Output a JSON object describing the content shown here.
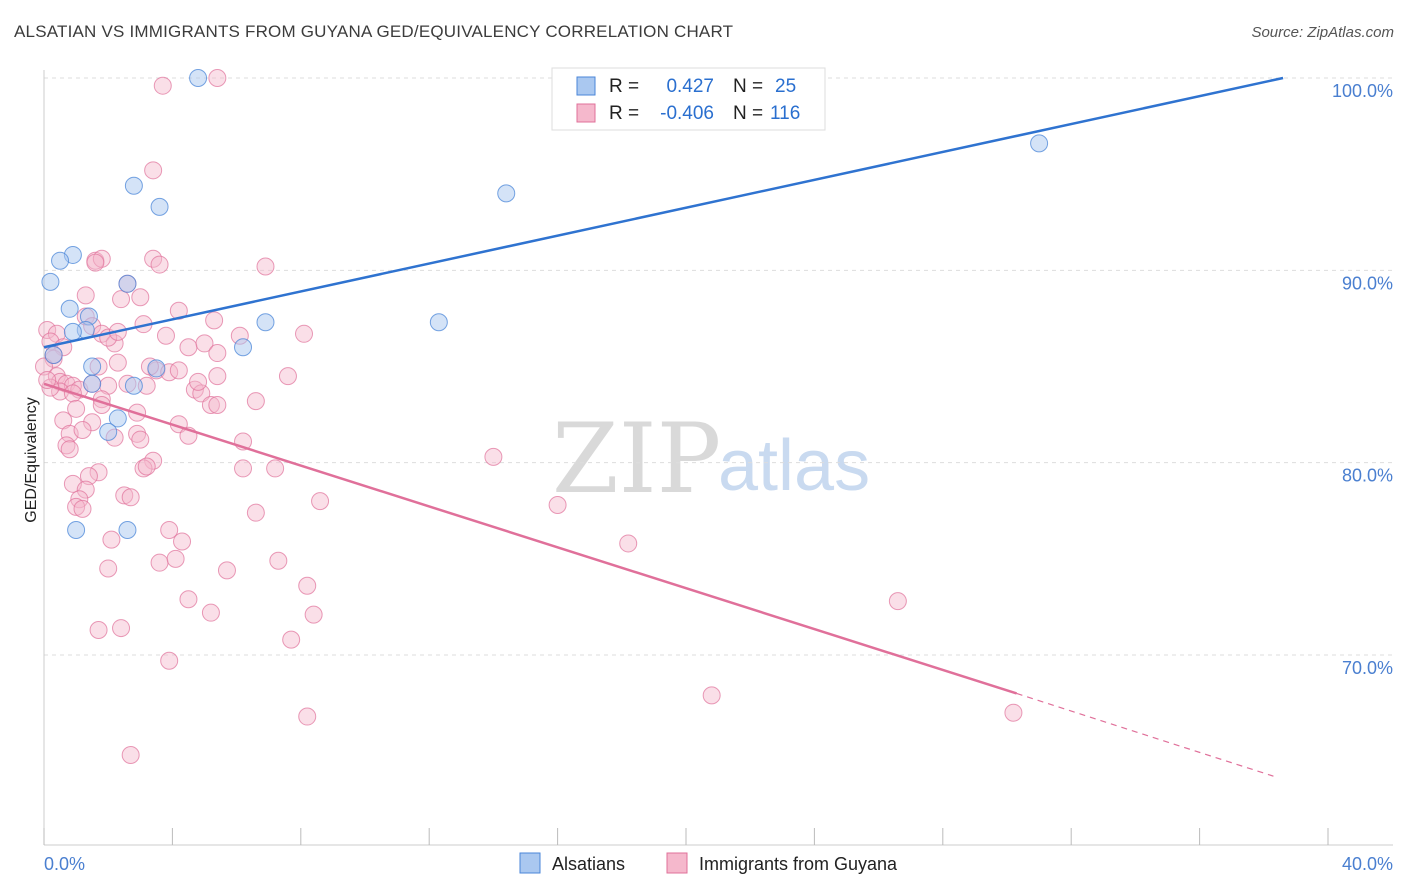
{
  "title": "ALSATIAN VS IMMIGRANTS FROM GUYANA GED/EQUIVALENCY CORRELATION CHART",
  "source": "Source: ZipAtlas.com",
  "watermark": {
    "zip": "ZIP",
    "atlas": "atlas"
  },
  "colors": {
    "blue": "#4a86d8",
    "blue_fill": "#aac8f0",
    "pink": "#e0709a",
    "pink_fill": "#f5b8cc",
    "axis_label": "#4a7fd0",
    "grid": "#dddddd"
  },
  "legend": {
    "rows": [
      {
        "r_label": "R =",
        "r_value": "0.427",
        "n_label": "N =",
        "n_value": "25"
      },
      {
        "r_label": "R =",
        "r_value": "-0.406",
        "n_label": "N =",
        "n_value": "116"
      }
    ]
  },
  "bottom_legend": [
    "Alsatians",
    "Immigrants from Guyana"
  ],
  "chart_data": {
    "type": "scatter",
    "ylabel": "GED/Equivalency",
    "xlabel": "",
    "x_tick_labels": [
      "0.0%",
      "40.0%"
    ],
    "y_tick_labels": [
      "100.0%",
      "90.0%",
      "80.0%",
      "70.0%"
    ],
    "y_ticks": [
      100,
      90,
      80,
      70
    ],
    "xlim": [
      0,
      40
    ],
    "ylim": [
      61,
      101
    ],
    "grid": true,
    "legend_position": "top-center",
    "series": [
      {
        "name": "Alsatians",
        "color": "#4a86d8",
        "trend": {
          "x0": 0,
          "y0": 86.0,
          "x1": 38.6,
          "y1": 100.0
        },
        "points": [
          [
            4.8,
            100.0
          ],
          [
            2.8,
            94.4
          ],
          [
            3.6,
            93.3
          ],
          [
            0.9,
            90.8
          ],
          [
            0.5,
            90.5
          ],
          [
            0.2,
            89.4
          ],
          [
            0.8,
            88.0
          ],
          [
            1.4,
            87.6
          ],
          [
            1.3,
            86.9
          ],
          [
            0.9,
            86.8
          ],
          [
            2.6,
            89.3
          ],
          [
            6.9,
            87.3
          ],
          [
            6.2,
            86.0
          ],
          [
            3.5,
            84.9
          ],
          [
            1.5,
            85.0
          ],
          [
            1.5,
            84.1
          ],
          [
            2.8,
            84.0
          ],
          [
            2.3,
            82.3
          ],
          [
            2.0,
            81.6
          ],
          [
            1.0,
            76.5
          ],
          [
            2.6,
            76.5
          ],
          [
            14.4,
            94.0
          ],
          [
            12.3,
            87.3
          ],
          [
            31.0,
            96.6
          ],
          [
            0.3,
            85.6
          ]
        ]
      },
      {
        "name": "Immigrants from Guyana",
        "color": "#e0709a",
        "trend": {
          "x0": 0,
          "y0": 84.1,
          "x1": 30.3,
          "y1": 68.0,
          "dash_x1": 38.3,
          "dash_y1": 63.7
        },
        "points": [
          [
            5.4,
            100.0
          ],
          [
            3.7,
            99.6
          ],
          [
            3.4,
            95.2
          ],
          [
            1.6,
            90.5
          ],
          [
            1.8,
            90.6
          ],
          [
            3.4,
            90.6
          ],
          [
            3.6,
            90.3
          ],
          [
            6.9,
            90.2
          ],
          [
            1.6,
            90.4
          ],
          [
            1.3,
            88.7
          ],
          [
            2.4,
            88.5
          ],
          [
            3.0,
            88.6
          ],
          [
            2.6,
            89.3
          ],
          [
            4.2,
            87.9
          ],
          [
            1.3,
            87.6
          ],
          [
            1.5,
            87.1
          ],
          [
            3.1,
            87.2
          ],
          [
            0.1,
            86.9
          ],
          [
            0.4,
            86.7
          ],
          [
            1.8,
            86.7
          ],
          [
            3.8,
            86.6
          ],
          [
            5.3,
            87.4
          ],
          [
            6.1,
            86.6
          ],
          [
            8.1,
            86.7
          ],
          [
            0.2,
            86.3
          ],
          [
            0.6,
            86.0
          ],
          [
            2.2,
            86.2
          ],
          [
            4.5,
            86.0
          ],
          [
            5.0,
            86.2
          ],
          [
            5.4,
            85.7
          ],
          [
            0.3,
            85.4
          ],
          [
            0.0,
            85.0
          ],
          [
            1.7,
            85.0
          ],
          [
            2.3,
            85.2
          ],
          [
            3.5,
            84.8
          ],
          [
            3.9,
            84.7
          ],
          [
            4.2,
            84.8
          ],
          [
            7.6,
            84.5
          ],
          [
            0.4,
            84.5
          ],
          [
            0.5,
            84.2
          ],
          [
            0.7,
            84.1
          ],
          [
            0.9,
            84.0
          ],
          [
            1.1,
            83.8
          ],
          [
            1.5,
            84.1
          ],
          [
            2.0,
            84.0
          ],
          [
            2.6,
            84.1
          ],
          [
            0.5,
            83.7
          ],
          [
            0.2,
            83.9
          ],
          [
            0.9,
            83.6
          ],
          [
            1.8,
            83.3
          ],
          [
            4.7,
            83.8
          ],
          [
            4.9,
            83.6
          ],
          [
            5.2,
            83.0
          ],
          [
            5.4,
            83.0
          ],
          [
            6.6,
            83.2
          ],
          [
            1.0,
            82.8
          ],
          [
            0.6,
            82.2
          ],
          [
            2.9,
            82.6
          ],
          [
            1.5,
            82.1
          ],
          [
            4.2,
            82.0
          ],
          [
            4.5,
            81.4
          ],
          [
            0.8,
            81.5
          ],
          [
            2.2,
            81.3
          ],
          [
            2.9,
            81.5
          ],
          [
            3.0,
            81.2
          ],
          [
            6.2,
            81.1
          ],
          [
            0.7,
            80.9
          ],
          [
            0.8,
            80.7
          ],
          [
            3.4,
            80.1
          ],
          [
            3.1,
            79.7
          ],
          [
            3.2,
            79.8
          ],
          [
            6.2,
            79.7
          ],
          [
            7.2,
            79.7
          ],
          [
            1.7,
            79.5
          ],
          [
            1.4,
            79.3
          ],
          [
            0.9,
            78.9
          ],
          [
            1.3,
            78.6
          ],
          [
            1.1,
            78.1
          ],
          [
            2.5,
            78.3
          ],
          [
            2.7,
            78.2
          ],
          [
            8.6,
            78.0
          ],
          [
            1.0,
            77.7
          ],
          [
            1.2,
            77.6
          ],
          [
            6.6,
            77.4
          ],
          [
            3.9,
            76.5
          ],
          [
            2.1,
            76.0
          ],
          [
            4.3,
            75.9
          ],
          [
            3.6,
            74.8
          ],
          [
            4.1,
            75.0
          ],
          [
            7.3,
            74.9
          ],
          [
            2.0,
            74.5
          ],
          [
            5.7,
            74.4
          ],
          [
            8.2,
            73.6
          ],
          [
            4.5,
            72.9
          ],
          [
            5.2,
            72.2
          ],
          [
            8.4,
            72.1
          ],
          [
            1.7,
            71.3
          ],
          [
            2.4,
            71.4
          ],
          [
            7.7,
            70.8
          ],
          [
            3.9,
            69.7
          ],
          [
            8.2,
            66.8
          ],
          [
            2.7,
            64.8
          ],
          [
            16.0,
            77.8
          ],
          [
            14.0,
            80.3
          ],
          [
            18.2,
            75.8
          ],
          [
            26.6,
            72.8
          ],
          [
            20.8,
            67.9
          ],
          [
            30.2,
            67.0
          ],
          [
            1.2,
            81.7
          ],
          [
            0.3,
            85.6
          ],
          [
            0.1,
            84.3
          ],
          [
            2.0,
            86.5
          ],
          [
            3.2,
            84.0
          ],
          [
            4.8,
            84.2
          ],
          [
            5.4,
            84.5
          ],
          [
            2.3,
            86.8
          ],
          [
            3.3,
            85.0
          ],
          [
            1.8,
            83.0
          ]
        ]
      }
    ]
  }
}
